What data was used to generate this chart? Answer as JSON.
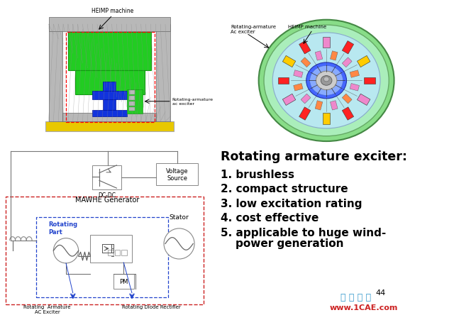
{
  "bg_color": "#ffffff",
  "title_text": "Rotating armature exciter:",
  "bullet_texts": [
    "1. brushless",
    "2. compact structure",
    "3. low excitation rating",
    "4. cost effective",
    "5. applicable to huge wind-",
    "    power generation"
  ],
  "page_number": "44",
  "watermark_cn": "仿 真 在 线",
  "watermark_url": "www.1CAE.com",
  "top_left_label": "HEIMP machine",
  "rotating_arm_label": "Rotating-armature\nac exciter",
  "top_right_label1": "Rotating-armature",
  "top_right_label2": "Ac exciter",
  "top_right_label3": "HEIMP machine",
  "dc_dc": "DC-DC",
  "mawhe": "MAWHE Generator",
  "voltage_source": "Voltage\nSource",
  "rotating_part": "Rotating\nPart",
  "stator_lbl": "Stator",
  "pm_lbl": "PM",
  "ac_exciter_lbl": "Rotating  Armature\nAC Exciter",
  "diode_lbl": "Rotating Diode Rectifier"
}
